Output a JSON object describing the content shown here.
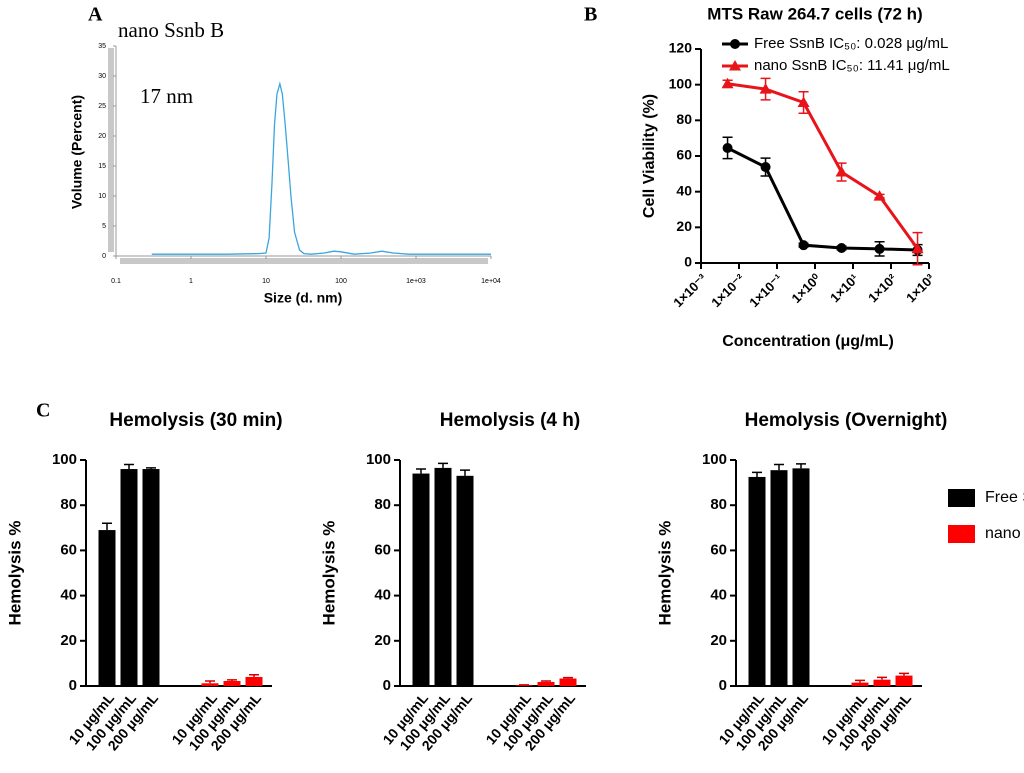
{
  "chart_data": [
    {
      "type": "line",
      "panel": "A",
      "title": "nano Ssnb B",
      "annotation": "17 nm",
      "xlabel": "Size (d. nm)",
      "ylabel": "Volume (Percent)",
      "xscale": "log",
      "xlim": [
        0.1,
        10000
      ],
      "xticks": [
        0.1,
        1,
        10,
        100,
        {
          "value": 1000,
          "label": "1e+03"
        },
        {
          "value": 10000,
          "label": "1e+04"
        }
      ],
      "ylim": [
        0,
        35
      ],
      "yticks": [
        0,
        5,
        10,
        15,
        20,
        25,
        30,
        35
      ],
      "x": [
        0.3,
        1,
        3,
        8,
        10,
        11,
        12,
        13,
        14,
        15.3,
        16.5,
        18,
        20,
        21.5,
        24,
        28,
        32,
        40,
        60,
        80,
        100,
        150,
        250,
        350,
        500,
        800,
        2000,
        5000,
        10000
      ],
      "values": [
        0.3,
        0.3,
        0.3,
        0.4,
        0.5,
        3,
        12,
        22,
        27,
        28.7,
        27,
        22,
        15,
        10,
        4,
        1,
        0.4,
        0.3,
        0.5,
        0.8,
        0.7,
        0.3,
        0.5,
        0.8,
        0.5,
        0.3,
        0.3,
        0.3,
        0.3
      ],
      "color": "#3aa6dd"
    },
    {
      "type": "line",
      "panel": "B",
      "title": "MTS Raw 264.7 cells (72 h)",
      "xlabel": "Concentration (μg/mL)",
      "ylabel": "Cell Viability (%)",
      "xscale": "log",
      "xlim": [
        0.001,
        1000
      ],
      "xticks": [
        {
          "value": 0.001,
          "label": "1×10⁻³"
        },
        {
          "value": 0.01,
          "label": "1×10⁻²"
        },
        {
          "value": 0.1,
          "label": "1×10⁻¹"
        },
        {
          "value": 1,
          "label": "1×10⁰"
        },
        {
          "value": 10,
          "label": "1×10¹"
        },
        {
          "value": 100,
          "label": "1×10²"
        },
        {
          "value": 1000,
          "label": "1×10³"
        }
      ],
      "ylim": [
        0,
        120
      ],
      "yticks": [
        0,
        20,
        40,
        60,
        80,
        100,
        120
      ],
      "x": [
        0.005,
        0.05,
        0.5,
        5,
        50,
        500
      ],
      "series": [
        {
          "name": "Free SsnB IC₅₀: 0.028 μg/mL",
          "color": "#000000",
          "marker": "circle",
          "values": [
            64.5,
            53.8,
            10,
            8.4,
            7.9,
            7.3
          ],
          "errors": [
            6,
            5,
            1,
            1,
            4,
            3
          ]
        },
        {
          "name": "nano SsnB IC₅₀: 11.41 μg/mL",
          "color": "#e8141a",
          "marker": "triangle",
          "values": [
            100.5,
            97.5,
            90,
            51,
            37.5,
            8
          ],
          "errors": [
            2,
            6,
            6,
            5,
            1,
            9
          ]
        }
      ],
      "legend": "upper right"
    },
    {
      "type": "bar",
      "panel": "C",
      "title": "Hemolysis (30 min)",
      "ylabel": "Hemolysis %",
      "categories": [
        "10 μg/mL",
        "100 μg/mL",
        "200 μg/mL"
      ],
      "ylim": [
        0,
        100
      ],
      "yticks": [
        0,
        20,
        40,
        60,
        80,
        100
      ],
      "series": [
        {
          "color": "#000000",
          "values": [
            69,
            96,
            96
          ],
          "errors": [
            3,
            2,
            0.5
          ]
        },
        {
          "color": "#ff0000",
          "values": [
            1.2,
            2.2,
            4
          ],
          "errors": [
            1,
            0.5,
            1
          ]
        }
      ]
    },
    {
      "type": "bar",
      "title": "Hemolysis (4 h)",
      "ylabel": "Hemolysis %",
      "categories": [
        "10 μg/mL",
        "100 μg/mL",
        "200 μg/mL"
      ],
      "ylim": [
        0,
        100
      ],
      "yticks": [
        0,
        20,
        40,
        60,
        80,
        100
      ],
      "series": [
        {
          "color": "#000000",
          "values": [
            94,
            96.5,
            93
          ],
          "errors": [
            2,
            2,
            2.5
          ]
        },
        {
          "color": "#ff0000",
          "values": [
            0.3,
            1.8,
            3.3
          ],
          "errors": [
            0.2,
            0.4,
            0.4
          ]
        }
      ]
    },
    {
      "type": "bar",
      "title": "Hemolysis (Overnight)",
      "ylabel": "Hemolysis %",
      "categories": [
        "10 μg/mL",
        "100 μg/mL",
        "200 μg/mL"
      ],
      "ylim": [
        0,
        100
      ],
      "yticks": [
        0,
        20,
        40,
        60,
        80,
        100
      ],
      "series": [
        {
          "name": "Free SsnB",
          "color": "#000000",
          "values": [
            92.5,
            95.5,
            96.3
          ],
          "errors": [
            2,
            2.5,
            2
          ]
        },
        {
          "name": "nano SsnB",
          "color": "#ff0000",
          "values": [
            1.5,
            2.8,
            4.6
          ],
          "errors": [
            1,
            1,
            1
          ]
        }
      ],
      "legend": "right"
    }
  ]
}
